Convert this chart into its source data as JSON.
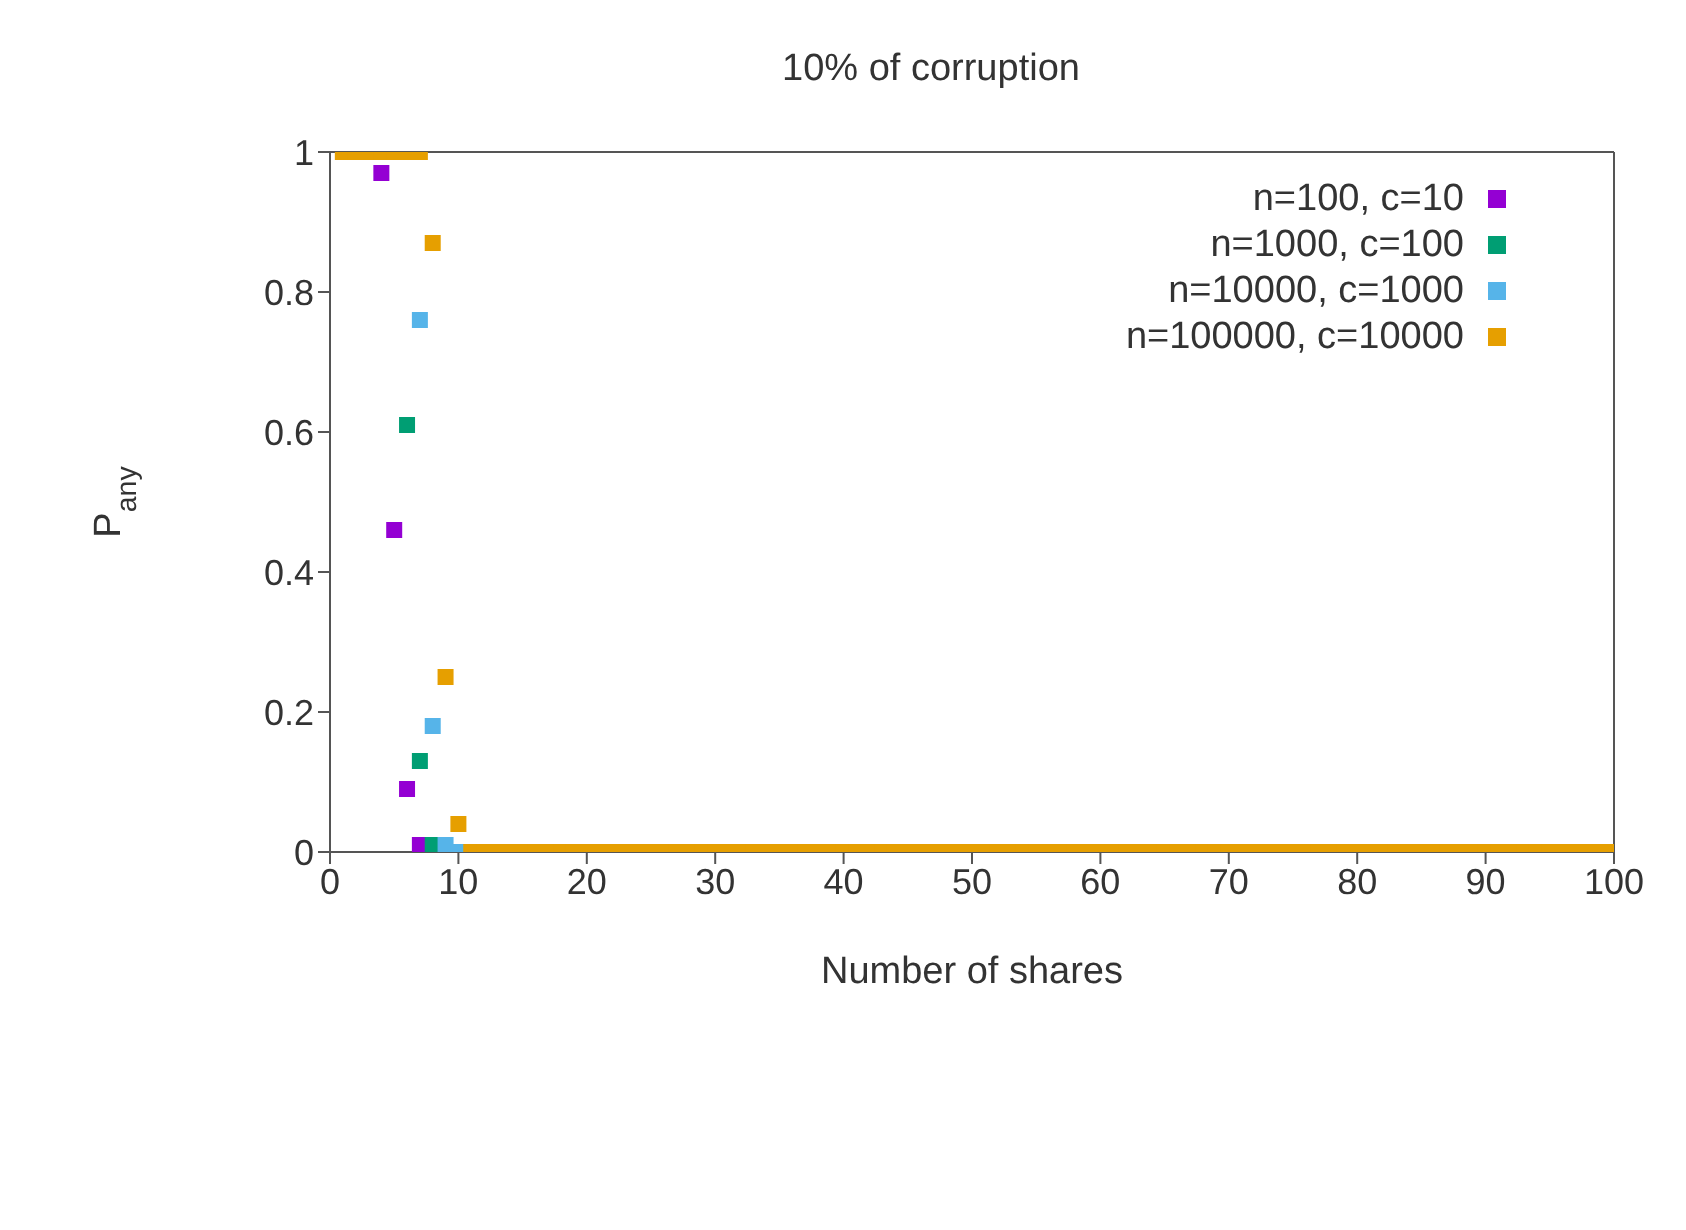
{
  "chart_data": {
    "type": "scatter",
    "title": "10% of corruption",
    "xlabel": "Number of shares",
    "ylabel": "P$_{any}$",
    "x": [
      1,
      2,
      3,
      4,
      5,
      6,
      7,
      8,
      9,
      10,
      11,
      12,
      13,
      14,
      15,
      16,
      17,
      18,
      19,
      20,
      21,
      22,
      23,
      24,
      25,
      26,
      27,
      28,
      29,
      30,
      31,
      32,
      33,
      34,
      35,
      36,
      37,
      38,
      39,
      40,
      41,
      42,
      43,
      44,
      45,
      46,
      47,
      48,
      49,
      50,
      51,
      52,
      53,
      54,
      55,
      56,
      57,
      58,
      59,
      60,
      61,
      62,
      63,
      64,
      65,
      66,
      67,
      68,
      69,
      70,
      71,
      72,
      73,
      74,
      75,
      76,
      77,
      78,
      79,
      80,
      81,
      82,
      83,
      84,
      85,
      86,
      87,
      88,
      89,
      90,
      91,
      92,
      93,
      94,
      95,
      96,
      97,
      98,
      99,
      100
    ],
    "series": [
      {
        "name": "n=100, c=10",
        "color": "#9400d3",
        "values": [
          null,
          null,
          null,
          0.97,
          0.46,
          0.09,
          0.01,
          null,
          null,
          null,
          null,
          null,
          null,
          null,
          null,
          null,
          null,
          null,
          null,
          null,
          null,
          null,
          null,
          null,
          null,
          null,
          null,
          null,
          null,
          null,
          null,
          null,
          null,
          null,
          null,
          null,
          null,
          null,
          null,
          null,
          null,
          null,
          null,
          null,
          null,
          null,
          null,
          null,
          null,
          null,
          null,
          null,
          null,
          null,
          null,
          null,
          null,
          null,
          null,
          null,
          null,
          null,
          null,
          null,
          null,
          null,
          null,
          null,
          null,
          null,
          null,
          null,
          null,
          null,
          null,
          null,
          null,
          null,
          null,
          null,
          null,
          null,
          null,
          null,
          null,
          null,
          null,
          null,
          null,
          null,
          null,
          null,
          null,
          null,
          null,
          null,
          null,
          null,
          null,
          null
        ]
      },
      {
        "name": "n=1000, c=100",
        "color": "#009e73",
        "values": [
          null,
          null,
          null,
          null,
          null,
          0.61,
          0.13,
          0.01,
          null,
          null,
          null,
          null,
          null,
          null,
          null,
          null,
          null,
          null,
          null,
          null,
          null,
          null,
          null,
          null,
          null,
          null,
          null,
          null,
          null,
          null,
          null,
          null,
          null,
          null,
          null,
          null,
          null,
          null,
          null,
          null,
          null,
          null,
          null,
          null,
          null,
          null,
          null,
          null,
          null,
          null,
          null,
          null,
          null,
          null,
          null,
          null,
          null,
          null,
          null,
          null,
          null,
          null,
          null,
          null,
          null,
          null,
          null,
          null,
          null,
          null,
          null,
          null,
          null,
          null,
          null,
          null,
          null,
          null,
          null,
          null,
          null,
          null,
          null,
          null,
          null,
          null,
          null,
          null,
          null,
          null,
          null,
          null,
          null,
          null,
          null,
          null,
          null,
          null,
          null,
          null
        ]
      },
      {
        "name": "n=10000, c=1000",
        "color": "#56b4e9",
        "values": [
          null,
          null,
          null,
          null,
          null,
          null,
          0.76,
          0.18,
          0.01,
          0,
          null,
          null,
          null,
          null,
          null,
          null,
          null,
          null,
          null,
          null,
          null,
          null,
          null,
          null,
          null,
          null,
          null,
          null,
          null,
          null,
          null,
          null,
          null,
          null,
          null,
          null,
          null,
          null,
          null,
          null,
          null,
          null,
          null,
          null,
          null,
          null,
          null,
          null,
          null,
          null,
          null,
          null,
          null,
          null,
          null,
          null,
          null,
          null,
          null,
          null,
          null,
          null,
          null,
          null,
          null,
          null,
          null,
          null,
          null,
          null,
          null,
          null,
          null,
          null,
          null,
          null,
          null,
          null,
          null,
          null,
          null,
          null,
          null,
          null,
          null,
          null,
          null,
          null,
          null,
          null,
          null,
          null,
          null,
          null,
          null,
          null,
          null,
          null,
          null,
          null
        ]
      },
      {
        "name": "n=100000, c=10000",
        "color": "#e69f00",
        "values": [
          1,
          1,
          1,
          1,
          1,
          1,
          1,
          0.87,
          0.25,
          0.04,
          0,
          0,
          0,
          0,
          0,
          0,
          0,
          0,
          0,
          0,
          0,
          0,
          0,
          0,
          0,
          0,
          0,
          0,
          0,
          0,
          0,
          0,
          0,
          0,
          0,
          0,
          0,
          0,
          0,
          0,
          0,
          0,
          0,
          0,
          0,
          0,
          0,
          0,
          0,
          0,
          0,
          0,
          0,
          0,
          0,
          0,
          0,
          0,
          0,
          0,
          0,
          0,
          0,
          0,
          0,
          0,
          0,
          0,
          0,
          0,
          0,
          0,
          0,
          0,
          0,
          0,
          0,
          0,
          0,
          0,
          0,
          0,
          0,
          0,
          0,
          0,
          0,
          0,
          0,
          0,
          0,
          0,
          0,
          0,
          0,
          0,
          0,
          0,
          0,
          0
        ]
      }
    ],
    "xlim": [
      0,
      100
    ],
    "xticks": [
      0,
      10,
      20,
      30,
      40,
      50,
      60,
      70,
      80,
      90,
      100
    ],
    "ylim": [
      0,
      1
    ],
    "yticks": [
      0,
      0.2,
      0.4,
      0.6,
      0.8,
      1
    ],
    "marker": "square",
    "legend": "top right"
  }
}
